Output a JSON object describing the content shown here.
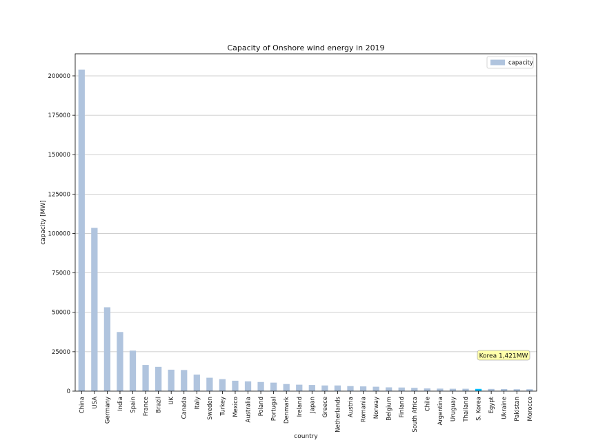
{
  "chart_data": {
    "type": "bar",
    "title": "Capacity of Onshore wind energy in 2019",
    "xlabel": "country",
    "ylabel": "capacity [MW]",
    "ylim": [
      0,
      214000
    ],
    "yticks": [
      0,
      25000,
      50000,
      75000,
      100000,
      125000,
      150000,
      175000,
      200000
    ],
    "grid": "horizontal",
    "legend": {
      "placement": "top-right",
      "label": "capacity"
    },
    "colors": {
      "bar": "#b0c4de",
      "highlight": "#00bfff",
      "grid": "#bfbfbf",
      "annotation_text": "#6aa000",
      "annotation_bg": "#ffffaa"
    },
    "categories": [
      "China",
      "USA",
      "Germany",
      "India",
      "Spain",
      "France",
      "Brazil",
      "UK",
      "Canada",
      "Italy",
      "Sweden",
      "Turkey",
      "Mexico",
      "Australia",
      "Poland",
      "Portugal",
      "Denmark",
      "Ireland",
      "Japan",
      "Greece",
      "Netherlands",
      "Austria",
      "Romania",
      "Norway",
      "Belgium",
      "Finland",
      "South Africa",
      "Chile",
      "Argentina",
      "Uruguay",
      "Thailand",
      "S. Korea",
      "Egypt",
      "Ukraine",
      "Pakistan",
      "Morocco"
    ],
    "values": [
      204000,
      103600,
      53200,
      37500,
      25700,
      16600,
      15400,
      13600,
      13400,
      10500,
      8500,
      7600,
      6600,
      6200,
      5800,
      5400,
      4500,
      4100,
      3900,
      3600,
      3600,
      3200,
      3000,
      2800,
      2400,
      2300,
      2100,
      1700,
      1600,
      1500,
      1500,
      1421,
      1400,
      1300,
      1200,
      1200
    ],
    "highlight_category": "S. Korea",
    "annotation": {
      "text": "Korea 1,421MW"
    }
  }
}
